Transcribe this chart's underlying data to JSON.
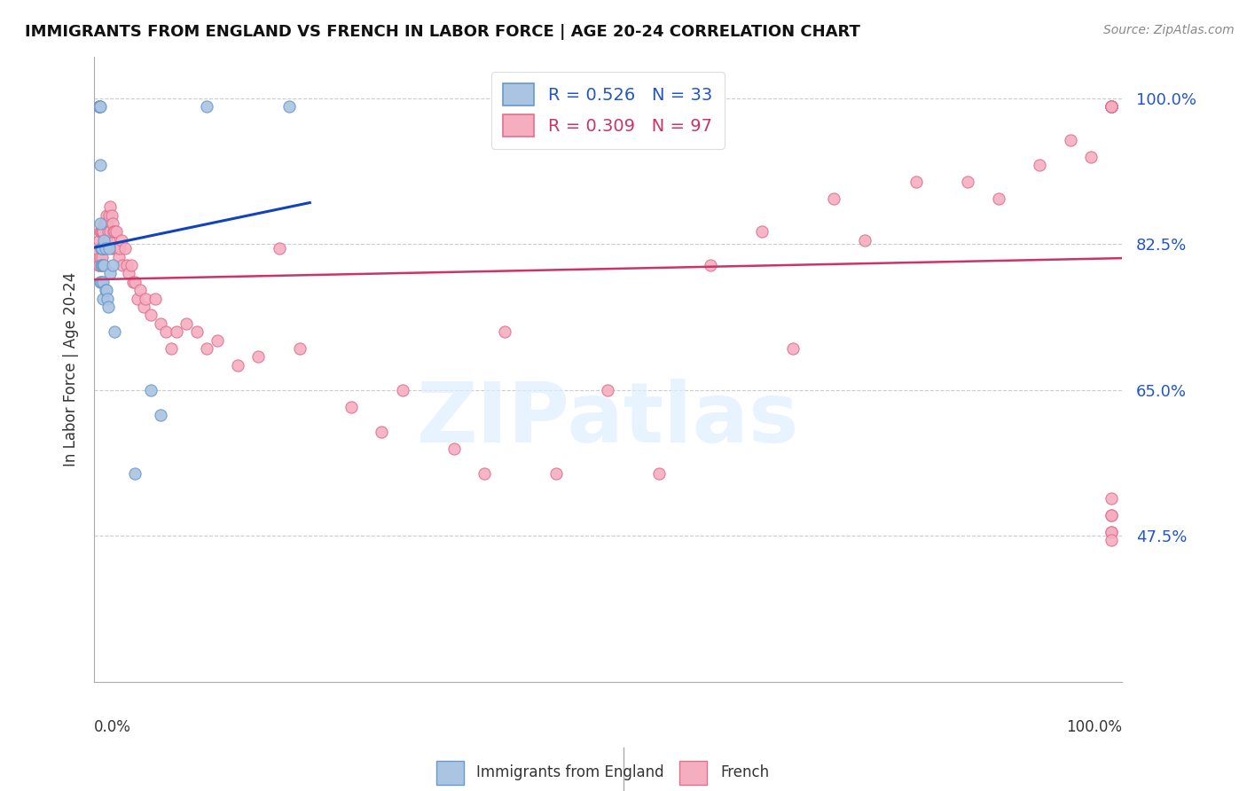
{
  "title": "IMMIGRANTS FROM ENGLAND VS FRENCH IN LABOR FORCE | AGE 20-24 CORRELATION CHART",
  "source": "Source: ZipAtlas.com",
  "ylabel": "In Labor Force | Age 20-24",
  "ytick_labels": [
    "47.5%",
    "65.0%",
    "82.5%",
    "100.0%"
  ],
  "ytick_values": [
    0.475,
    0.65,
    0.825,
    1.0
  ],
  "xlim": [
    0.0,
    1.0
  ],
  "ylim": [
    0.3,
    1.05
  ],
  "legend_england_r": "R = 0.526",
  "legend_england_n": "N = 33",
  "legend_french_r": "R = 0.309",
  "legend_french_n": "N = 97",
  "england_color": "#aac4e2",
  "england_edge_color": "#6699cc",
  "french_color": "#f5aec0",
  "french_edge_color": "#e07090",
  "england_line_color": "#1144bb",
  "french_line_color": "#cc3366",
  "watermark_color": "#ddeeff",
  "eng_x": [
    0.005,
    0.005,
    0.005,
    0.005,
    0.005,
    0.006,
    0.006,
    0.006,
    0.006,
    0.007,
    0.007,
    0.007,
    0.008,
    0.008,
    0.009,
    0.009,
    0.009,
    0.01,
    0.01,
    0.011,
    0.011,
    0.012,
    0.013,
    0.014,
    0.015,
    0.016,
    0.018,
    0.02,
    0.04,
    0.055,
    0.065,
    0.11,
    0.19
  ],
  "eng_y": [
    0.99,
    0.99,
    0.99,
    0.99,
    0.99,
    0.99,
    0.78,
    0.92,
    0.85,
    0.82,
    0.8,
    0.78,
    0.82,
    0.8,
    0.8,
    0.78,
    0.76,
    0.83,
    0.8,
    0.82,
    0.77,
    0.77,
    0.76,
    0.75,
    0.82,
    0.79,
    0.8,
    0.72,
    0.55,
    0.65,
    0.62,
    0.99,
    0.99
  ],
  "fr_x": [
    0.003,
    0.004,
    0.005,
    0.005,
    0.006,
    0.006,
    0.007,
    0.007,
    0.008,
    0.008,
    0.009,
    0.009,
    0.01,
    0.01,
    0.011,
    0.011,
    0.012,
    0.012,
    0.013,
    0.014,
    0.015,
    0.015,
    0.016,
    0.016,
    0.017,
    0.018,
    0.018,
    0.019,
    0.02,
    0.021,
    0.022,
    0.023,
    0.024,
    0.025,
    0.027,
    0.028,
    0.03,
    0.032,
    0.034,
    0.036,
    0.038,
    0.04,
    0.042,
    0.045,
    0.048,
    0.05,
    0.055,
    0.06,
    0.065,
    0.07,
    0.075,
    0.08,
    0.09,
    0.1,
    0.11,
    0.12,
    0.14,
    0.16,
    0.18,
    0.2,
    0.25,
    0.28,
    0.3,
    0.35,
    0.38,
    0.4,
    0.45,
    0.5,
    0.55,
    0.6,
    0.65,
    0.68,
    0.72,
    0.75,
    0.8,
    0.85,
    0.88,
    0.92,
    0.95,
    0.97,
    0.99,
    0.99,
    0.99,
    0.99,
    0.99,
    0.99,
    0.99,
    0.99,
    0.99,
    0.99,
    0.99,
    0.99,
    0.99,
    0.99,
    0.99,
    0.99,
    0.99
  ],
  "fr_y": [
    0.82,
    0.8,
    0.83,
    0.8,
    0.84,
    0.81,
    0.84,
    0.82,
    0.84,
    0.81,
    0.84,
    0.82,
    0.85,
    0.82,
    0.85,
    0.83,
    0.86,
    0.83,
    0.85,
    0.84,
    0.86,
    0.83,
    0.87,
    0.84,
    0.86,
    0.85,
    0.82,
    0.84,
    0.84,
    0.82,
    0.84,
    0.82,
    0.81,
    0.82,
    0.83,
    0.8,
    0.82,
    0.8,
    0.79,
    0.8,
    0.78,
    0.78,
    0.76,
    0.77,
    0.75,
    0.76,
    0.74,
    0.76,
    0.73,
    0.72,
    0.7,
    0.72,
    0.73,
    0.72,
    0.7,
    0.71,
    0.68,
    0.69,
    0.82,
    0.7,
    0.63,
    0.6,
    0.65,
    0.58,
    0.55,
    0.72,
    0.55,
    0.65,
    0.55,
    0.8,
    0.84,
    0.7,
    0.88,
    0.83,
    0.9,
    0.9,
    0.88,
    0.92,
    0.95,
    0.93,
    0.99,
    0.99,
    0.99,
    0.99,
    0.99,
    0.99,
    0.99,
    0.99,
    0.99,
    0.99,
    0.99,
    0.48,
    0.48,
    0.47,
    0.5,
    0.52,
    0.5
  ]
}
